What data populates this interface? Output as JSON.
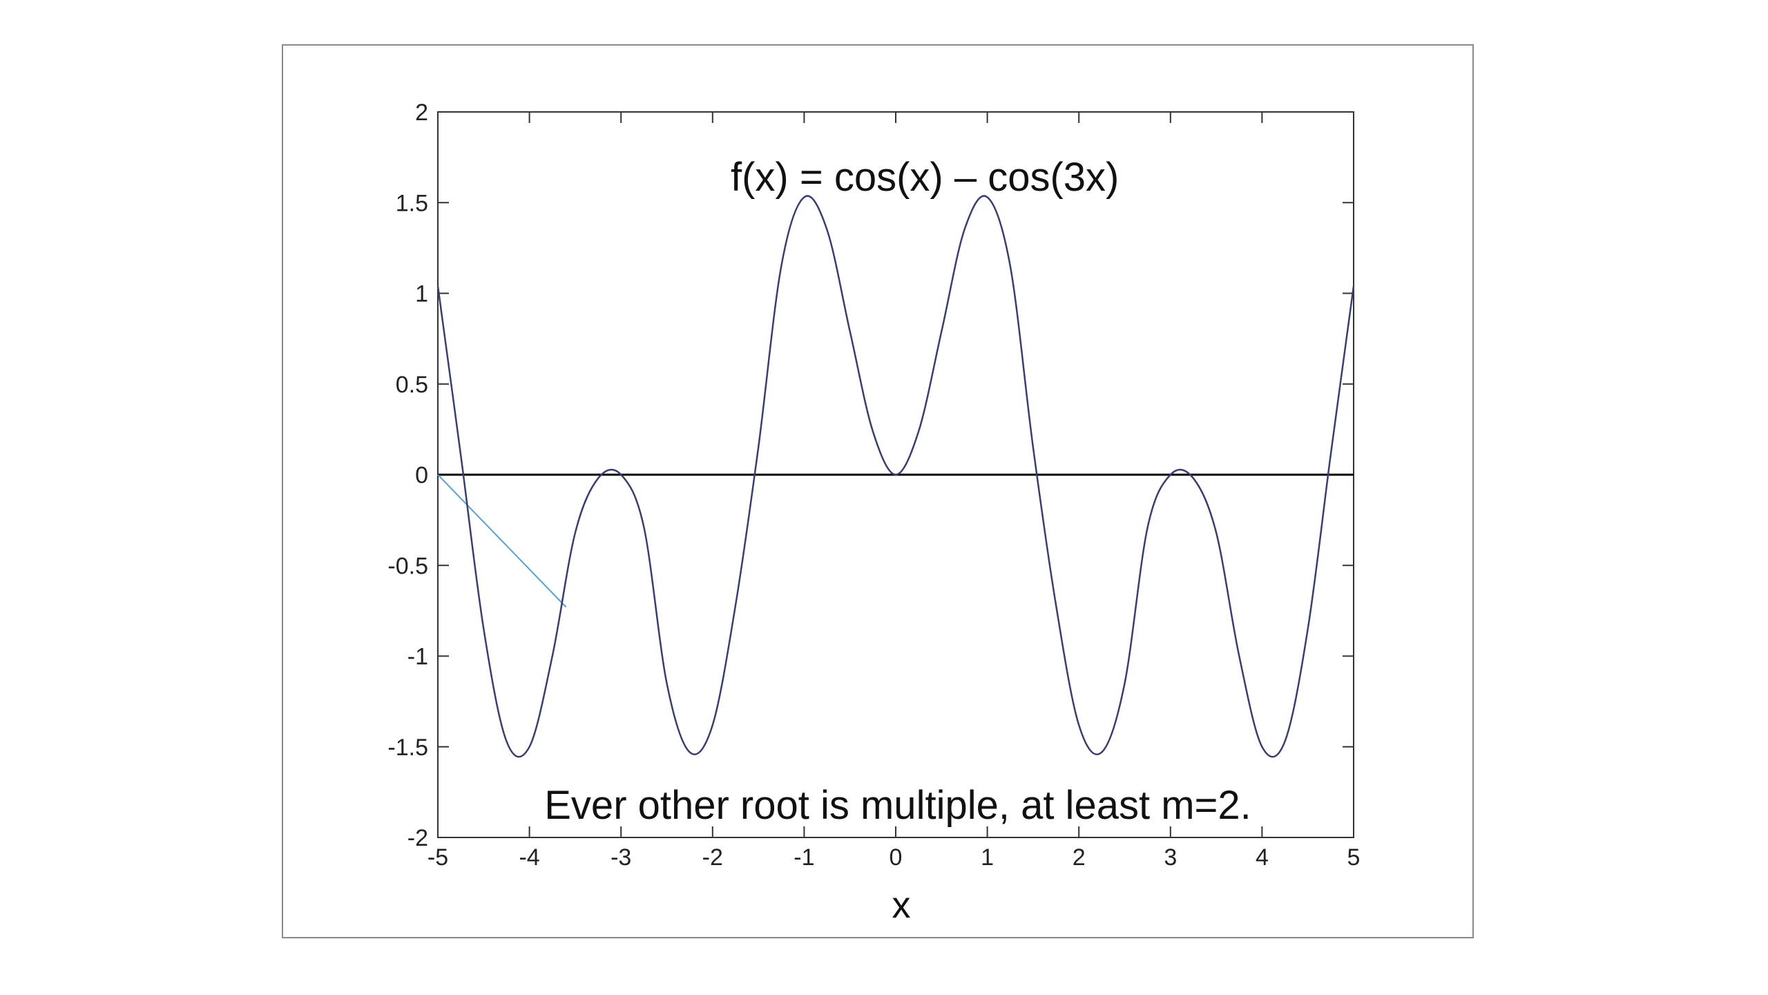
{
  "chart_data": {
    "type": "line",
    "title": "f(x) = cos(x) – cos(3x)",
    "xlabel": "x",
    "ylabel": "",
    "xlim": [
      -5,
      5
    ],
    "ylim": [
      -2,
      2
    ],
    "xticks": [
      "-5",
      "-4",
      "-3",
      "-2",
      "-1",
      "0",
      "1",
      "2",
      "3",
      "4",
      "5"
    ],
    "yticks": [
      "2",
      "1.5",
      "1",
      "0.5",
      "0",
      "-0.5",
      "-1",
      "-1.5",
      "-2"
    ],
    "grid": false,
    "series": [
      {
        "function": "cos(x) - cos(3x)",
        "color": "#3a3d6e",
        "x": [
          -5,
          -4.75,
          -4.5,
          -4.25,
          -4,
          -3.75,
          -3.5,
          -3.25,
          -3,
          -2.75,
          -2.5,
          -2.25,
          -2,
          -1.75,
          -1.5,
          -1.25,
          -1,
          -0.75,
          -0.5,
          -0.25,
          0,
          0.25,
          0.5,
          0.75,
          1,
          1.25,
          1.5,
          1.75,
          2,
          2.25,
          2.5,
          2.75,
          3,
          3.25,
          3.5,
          3.75,
          4,
          4.25,
          4.5,
          4.75,
          5
        ],
        "y": [
          1.04,
          0.11,
          -0.85,
          -1.47,
          -1.5,
          -1.0,
          -0.32,
          -0.02,
          0.0,
          -0.29,
          -1.15,
          -1.53,
          -1.38,
          -0.72,
          0.15,
          1.15,
          1.53,
          1.35,
          0.79,
          0.24,
          0.0,
          0.24,
          0.79,
          1.35,
          1.53,
          1.15,
          0.15,
          -0.72,
          -1.38,
          -1.53,
          -1.15,
          -0.29,
          0.0,
          -0.02,
          -0.32,
          -1.0,
          -1.5,
          -1.47,
          -0.85,
          0.11,
          1.04
        ]
      }
    ],
    "reference_line": {
      "y": 0,
      "color": "#000000"
    },
    "annotation_line": {
      "from": [
        -5,
        0
      ],
      "to": [
        -3.6,
        -0.73
      ],
      "color": "#5a9fd4"
    },
    "annotation": "Ever other root is multiple, at least m=2."
  }
}
